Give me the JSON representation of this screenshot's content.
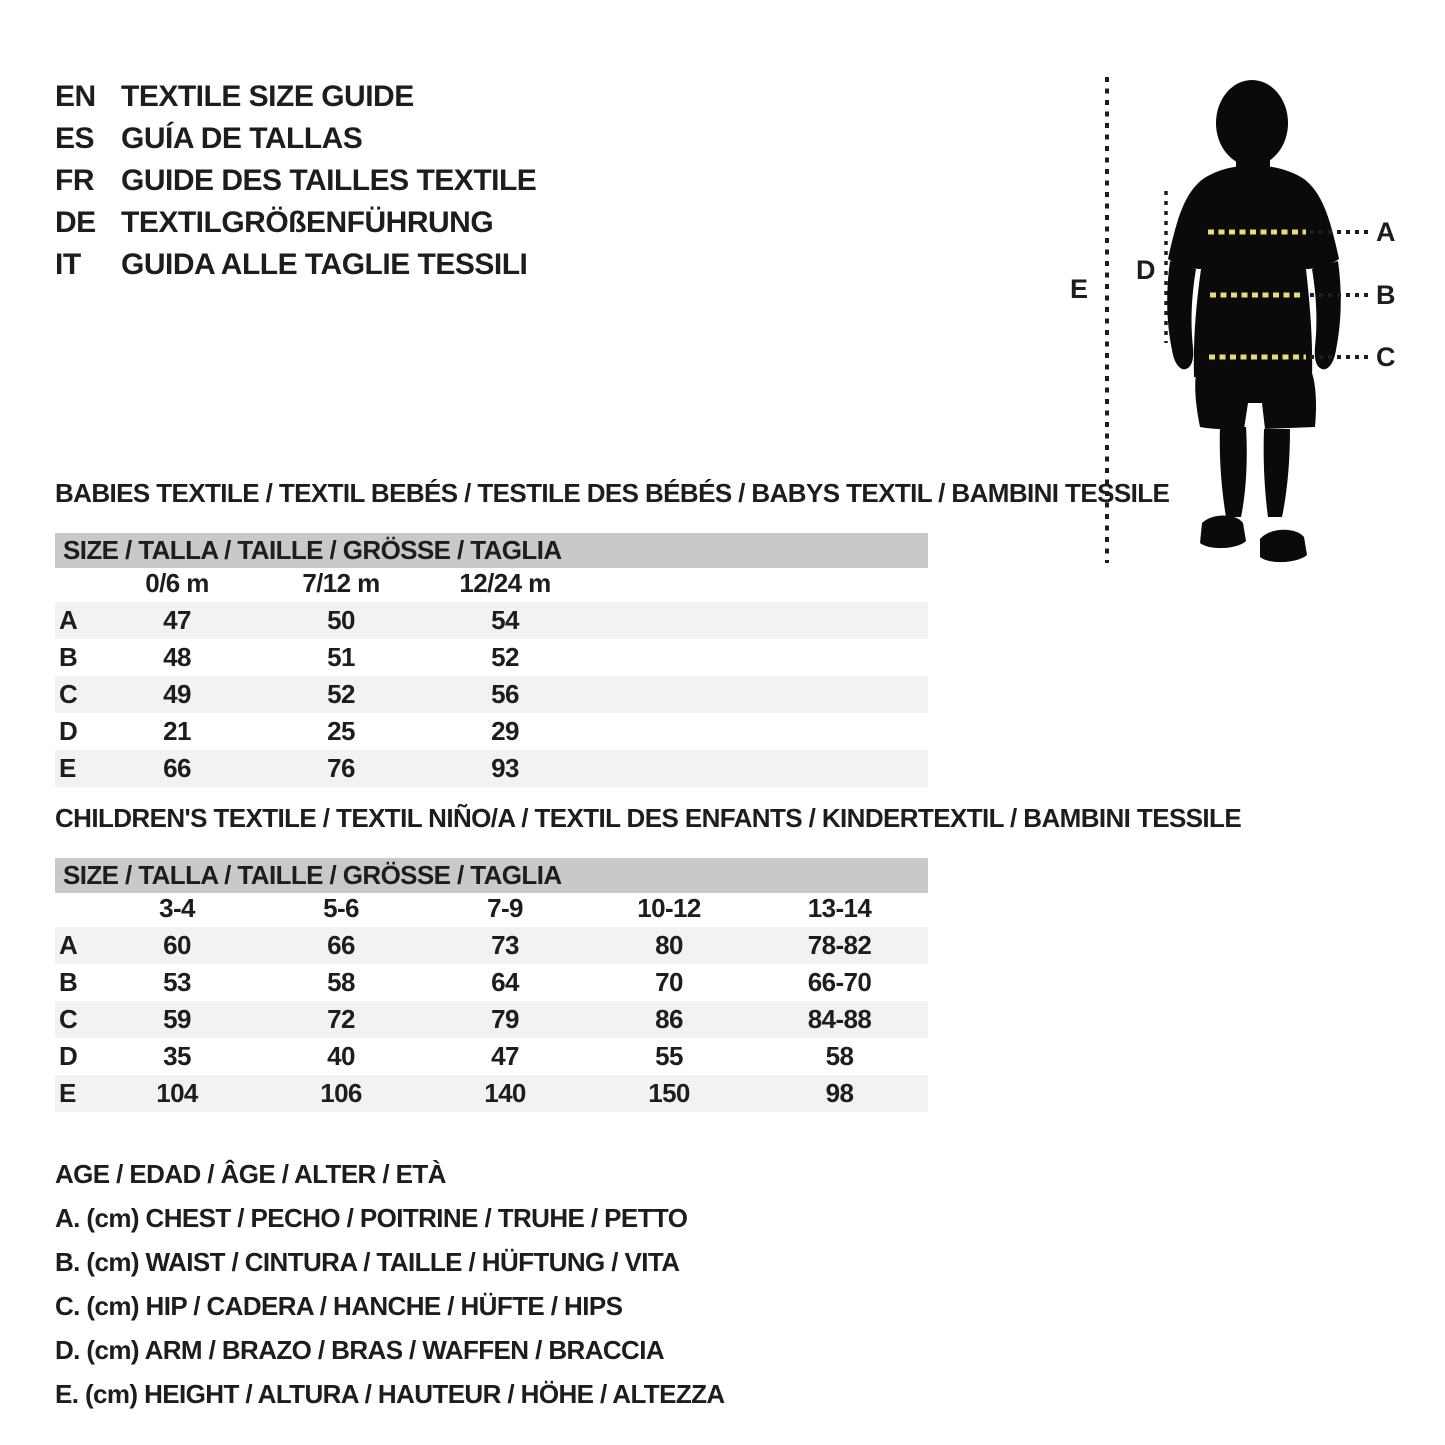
{
  "languages": [
    {
      "code": "EN",
      "label": "TEXTILE SIZE GUIDE"
    },
    {
      "code": "ES",
      "label": "GUÍA DE TALLAS"
    },
    {
      "code": "FR",
      "label": "GUIDE DES TAILLES TEXTILE"
    },
    {
      "code": "DE",
      "label": "TEXTILGRÖßENFÜHRUNG"
    },
    {
      "code": "IT",
      "label": "GUIDA ALLE TAGLIE TESSILI"
    }
  ],
  "figure": {
    "silhouette_color": "#0a0a0a",
    "dash_color": "#e9da7c",
    "line_color": "#1d1d1b",
    "labels": {
      "a": "A",
      "b": "B",
      "c": "C",
      "d": "D",
      "e": "E"
    }
  },
  "babies": {
    "heading": "BABIES TEXTILE / TEXTIL BEBÉS / TESTILE DES BÉBÉS / BABYS TEXTIL / BAMBINI TESSILE",
    "size_header": "SIZE / TALLA / TAILLE / GRÖSSE / TAGLIA",
    "columns": [
      "0/6 m",
      "7/12 m",
      "12/24 m"
    ],
    "rows": [
      {
        "label": "A",
        "values": [
          "47",
          "50",
          "54"
        ]
      },
      {
        "label": "B",
        "values": [
          "48",
          "51",
          "52"
        ]
      },
      {
        "label": "C",
        "values": [
          "49",
          "52",
          "56"
        ]
      },
      {
        "label": "D",
        "values": [
          "21",
          "25",
          "29"
        ]
      },
      {
        "label": "E",
        "values": [
          "66",
          "76",
          "93"
        ]
      }
    ]
  },
  "children": {
    "heading": "CHILDREN'S TEXTILE / TEXTIL NIÑO/A / TEXTIL DES ENFANTS / KINDERTEXTIL / BAMBINI TESSILE",
    "size_header": "SIZE / TALLA / TAILLE / GRÖSSE / TAGLIA",
    "columns": [
      "3-4",
      "5-6",
      "7-9",
      "10-12",
      "13-14"
    ],
    "rows": [
      {
        "label": "A",
        "values": [
          "60",
          "66",
          "73",
          "80",
          "78-82"
        ]
      },
      {
        "label": "B",
        "values": [
          "53",
          "58",
          "64",
          "70",
          "66-70"
        ]
      },
      {
        "label": "C",
        "values": [
          "59",
          "72",
          "79",
          "86",
          "84-88"
        ]
      },
      {
        "label": "D",
        "values": [
          "35",
          "40",
          "47",
          "55",
          "58"
        ]
      },
      {
        "label": "E",
        "values": [
          "104",
          "106",
          "140",
          "150",
          "98"
        ]
      }
    ]
  },
  "legend": [
    "AGE / EDAD / ÂGE / ALTER / ETÀ",
    "A. (cm) CHEST / PECHO / POITRINE / TRUHE / PETTO",
    "B. (cm) WAIST / CINTURA / TAILLE / HÜFTUNG / VITA",
    "C. (cm) HIP / CADERA / HANCHE / HÜFTE / HIPS",
    "D. (cm) ARM / BRAZO / BRAS / WAFFEN / BRACCIA",
    "E. (cm) HEIGHT / ALTURA / HAUTEUR / HÖHE / ALTEZZA"
  ]
}
